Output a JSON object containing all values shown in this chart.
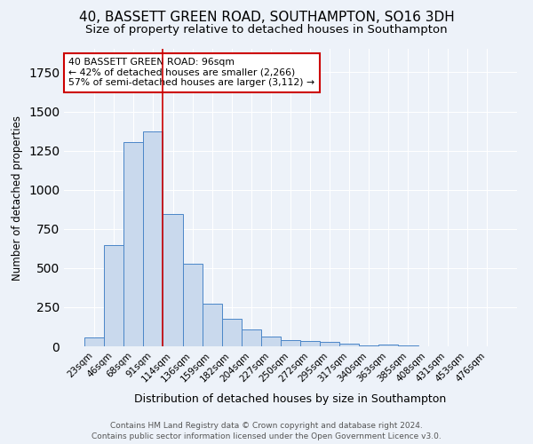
{
  "title": "40, BASSETT GREEN ROAD, SOUTHAMPTON, SO16 3DH",
  "subtitle": "Size of property relative to detached houses in Southampton",
  "xlabel": "Distribution of detached houses by size in Southampton",
  "ylabel": "Number of detached properties",
  "footer_line1": "Contains HM Land Registry data © Crown copyright and database right 2024.",
  "footer_line2": "Contains public sector information licensed under the Open Government Licence v3.0.",
  "categories": [
    "23sqm",
    "46sqm",
    "68sqm",
    "91sqm",
    "114sqm",
    "136sqm",
    "159sqm",
    "182sqm",
    "204sqm",
    "227sqm",
    "250sqm",
    "272sqm",
    "295sqm",
    "317sqm",
    "340sqm",
    "363sqm",
    "385sqm",
    "408sqm",
    "431sqm",
    "453sqm",
    "476sqm"
  ],
  "values": [
    55,
    645,
    1305,
    1370,
    845,
    525,
    275,
    175,
    105,
    65,
    38,
    35,
    28,
    16,
    5,
    12,
    5,
    0,
    0,
    0,
    0
  ],
  "bar_color": "#c9d9ed",
  "bar_edge_color": "#4a86c8",
  "vline_x": 3.5,
  "vline_color": "#cc0000",
  "annotation_text": "40 BASSETT GREEN ROAD: 96sqm\n← 42% of detached houses are smaller (2,266)\n57% of semi-detached houses are larger (3,112) →",
  "annotation_box_color": "#ffffff",
  "annotation_box_edge_color": "#cc0000",
  "ylim": [
    0,
    1900
  ],
  "background_color": "#edf2f9",
  "grid_color": "#ffffff",
  "title_fontsize": 11,
  "subtitle_fontsize": 9.5,
  "tick_fontsize": 7.5,
  "ylabel_fontsize": 8.5,
  "xlabel_fontsize": 9,
  "footer_fontsize": 6.5,
  "annotation_fontsize": 7.8
}
